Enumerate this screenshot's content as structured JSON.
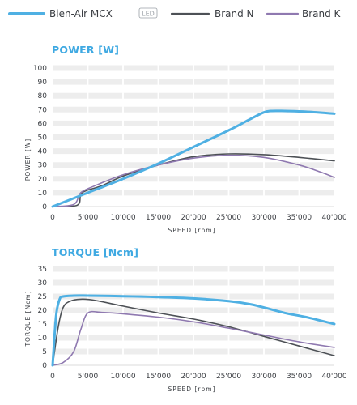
{
  "legend": {
    "items": [
      {
        "label": "Bien-Air MCX",
        "color": "#4fb0e3",
        "badge": "LED"
      },
      {
        "label": "Brand N",
        "color": "#4d5156"
      },
      {
        "label": "Brand K",
        "color": "#8f79b0"
      }
    ]
  },
  "chart_data": [
    {
      "type": "line",
      "title": "POWER [W]",
      "xlabel": "SPEED [rpm]",
      "ylabel": "POWER [W]",
      "xlim": [
        0,
        40000
      ],
      "ylim": [
        0,
        100
      ],
      "x_ticks": [
        0,
        5000,
        10000,
        15000,
        20000,
        25000,
        30000,
        35000,
        40000
      ],
      "x_tick_labels": [
        "0",
        "5'000",
        "10'000",
        "15'000",
        "20'000",
        "25'000",
        "30'000",
        "35'000",
        "40'000"
      ],
      "y_ticks": [
        0,
        10,
        20,
        30,
        40,
        50,
        60,
        70,
        80,
        90,
        100
      ],
      "y_tick_labels": [
        "0",
        "10",
        "20",
        "30",
        "40",
        "50",
        "60",
        "70",
        "80",
        "90",
        "100"
      ],
      "grid": true,
      "series": [
        {
          "name": "Bien-Air MCX",
          "color": "#4fb0e3",
          "points": [
            [
              0,
              0
            ],
            [
              5000,
              10
            ],
            [
              10000,
              20
            ],
            [
              15000,
              31
            ],
            [
              20000,
              43
            ],
            [
              25000,
              55
            ],
            [
              28000,
              63
            ],
            [
              30000,
              68
            ],
            [
              31000,
              69
            ],
            [
              33000,
              69
            ],
            [
              36000,
              68.5
            ],
            [
              40000,
              67
            ]
          ]
        },
        {
          "name": "Brand N",
          "color": "#4d5156",
          "points": [
            [
              0,
              0
            ],
            [
              3500,
              1
            ],
            [
              4200,
              10
            ],
            [
              7000,
              15
            ],
            [
              10000,
              22
            ],
            [
              15000,
              30
            ],
            [
              20000,
              36
            ],
            [
              25000,
              38
            ],
            [
              30000,
              37.5
            ],
            [
              35000,
              35.5
            ],
            [
              40000,
              33
            ]
          ]
        },
        {
          "name": "Brand K",
          "color": "#8f79b0",
          "points": [
            [
              0,
              0
            ],
            [
              3000,
              1.5
            ],
            [
              4000,
              10
            ],
            [
              6000,
              15
            ],
            [
              10000,
              23
            ],
            [
              15000,
              30
            ],
            [
              20000,
              35
            ],
            [
              25000,
              37
            ],
            [
              30000,
              35.5
            ],
            [
              35000,
              30
            ],
            [
              38000,
              25
            ],
            [
              40000,
              21
            ]
          ]
        }
      ]
    },
    {
      "type": "line",
      "title": "TORQUE [Ncm]",
      "xlabel": "SPEED [rpm]",
      "ylabel": "TORQUE [Ncm]",
      "xlim": [
        0,
        40000
      ],
      "ylim": [
        0,
        35
      ],
      "x_ticks": [
        0,
        5000,
        10000,
        15000,
        20000,
        25000,
        30000,
        35000,
        40000
      ],
      "x_tick_labels": [
        "0",
        "5'000",
        "10'000",
        "15'000",
        "20'000",
        "25'000",
        "30'000",
        "35'000",
        "40'000"
      ],
      "y_ticks": [
        0,
        5,
        10,
        15,
        20,
        25,
        30,
        35
      ],
      "y_tick_labels": [
        "0",
        "5",
        "10",
        "15",
        "20",
        "25",
        "30",
        "35"
      ],
      "grid": true,
      "series": [
        {
          "name": "Bien-Air MCX",
          "color": "#4fb0e3",
          "points": [
            [
              0,
              0
            ],
            [
              500,
              18
            ],
            [
              1000,
              24
            ],
            [
              1500,
              25
            ],
            [
              3000,
              25.3
            ],
            [
              5000,
              25.3
            ],
            [
              10000,
              25.1
            ],
            [
              15000,
              24.8
            ],
            [
              20000,
              24.3
            ],
            [
              25000,
              23.3
            ],
            [
              28000,
              22.2
            ],
            [
              30000,
              21
            ],
            [
              33000,
              19
            ],
            [
              36000,
              17.5
            ],
            [
              40000,
              15
            ]
          ]
        },
        {
          "name": "Brand N",
          "color": "#4d5156",
          "points": [
            [
              0,
              0
            ],
            [
              800,
              14
            ],
            [
              1500,
              21
            ],
            [
              2500,
              23.3
            ],
            [
              4000,
              24
            ],
            [
              6000,
              23.6
            ],
            [
              10000,
              21.5
            ],
            [
              15000,
              19
            ],
            [
              20000,
              16.8
            ],
            [
              25000,
              14
            ],
            [
              30000,
              10.5
            ],
            [
              35000,
              7
            ],
            [
              40000,
              3.5
            ]
          ]
        },
        {
          "name": "Brand K",
          "color": "#8f79b0",
          "points": [
            [
              0,
              0
            ],
            [
              1500,
              1
            ],
            [
              3000,
              5
            ],
            [
              4000,
              13
            ],
            [
              5000,
              19
            ],
            [
              7000,
              19.2
            ],
            [
              10000,
              18.7
            ],
            [
              15000,
              17.5
            ],
            [
              20000,
              15.8
            ],
            [
              25000,
              13.5
            ],
            [
              30000,
              11
            ],
            [
              35000,
              8.5
            ],
            [
              40000,
              6.5
            ]
          ]
        }
      ]
    }
  ]
}
